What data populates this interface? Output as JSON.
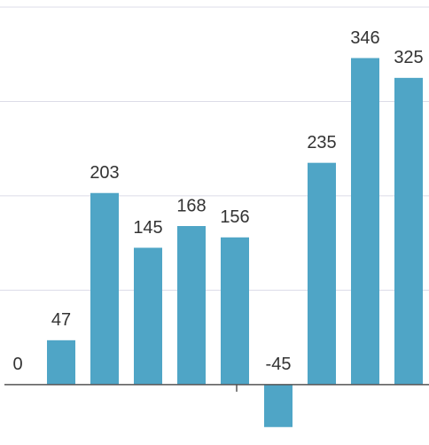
{
  "chart_data": {
    "type": "bar",
    "categories": [
      null,
      null,
      null,
      null,
      null,
      null,
      null,
      null,
      null,
      null
    ],
    "values": [
      0,
      47,
      203,
      145,
      168,
      156,
      -45,
      235,
      346,
      325
    ],
    "color": "#4fa5c6",
    "ylim": [
      -64,
      400
    ],
    "yticks": [
      100,
      200,
      300,
      400
    ],
    "grid": true
  }
}
